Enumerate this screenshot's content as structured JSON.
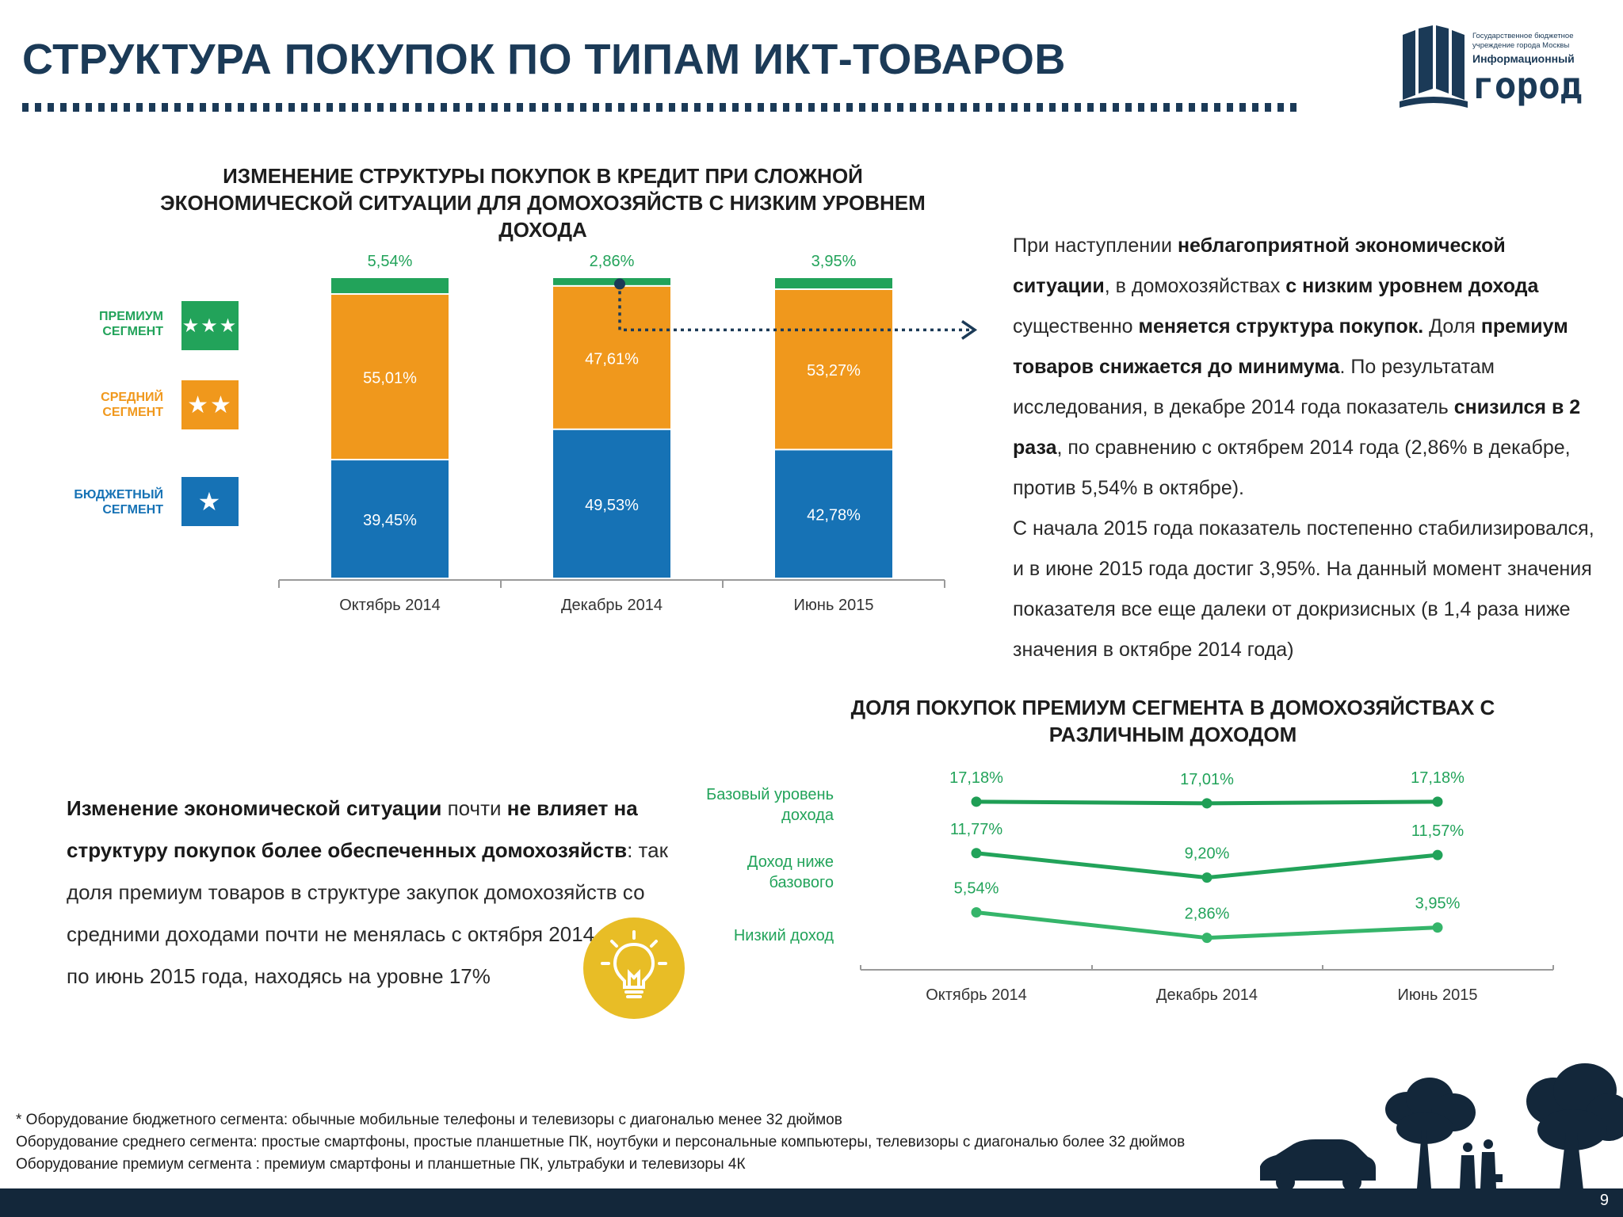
{
  "header": {
    "title": "СТРУКТУРА ПОКУПОК ПО ТИПАМ ИКТ-ТОВАРОВ",
    "logo_subtitle_1": "Государственное бюджетное",
    "logo_subtitle_2": "учреждение города Москвы",
    "logo_line1": "Информационный",
    "logo_line2": "город"
  },
  "legend": [
    {
      "label_1": "ПРЕМИУМ",
      "label_2": "СЕГМЕНТ",
      "stars": "★★★",
      "color": "#22a35a"
    },
    {
      "label_1": "СРЕДНИЙ",
      "label_2": "СЕГМЕНТ",
      "stars": "★★",
      "color": "#f0981c"
    },
    {
      "label_1": "БЮДЖЕТНЫЙ",
      "label_2": "СЕГМЕНТ",
      "stars": "★",
      "color": "#1672b5"
    }
  ],
  "chart_data": [
    {
      "type": "bar",
      "title_line1": "ИЗМЕНЕНИЕ СТРУКТУРЫ ПОКУПОК В КРЕДИТ ПРИ СЛОЖНОЙ",
      "title_line2": "ЭКОНОМИЧЕСКОЙ СИТУАЦИИ ДЛЯ ДОМОХОЗЯЙСТВ С НИЗКИМ УРОВНЕМ ДОХОДА",
      "stacked": true,
      "categories": [
        "Октябрь 2014",
        "Декабрь 2014",
        "Июнь 2015"
      ],
      "series": [
        {
          "name": "БЮДЖЕТНЫЙ СЕГМЕНТ",
          "values": [
            39.45,
            49.53,
            42.78
          ],
          "labels": [
            "39,45%",
            "49,53%",
            "42,78%"
          ],
          "color": "#1672b5"
        },
        {
          "name": "СРЕДНИЙ СЕГМЕНТ",
          "values": [
            55.01,
            47.61,
            53.27
          ],
          "labels": [
            "55,01%",
            "47,61%",
            "53,27%"
          ],
          "color": "#f0981c"
        },
        {
          "name": "ПРЕМИУМ СЕГМЕНТ",
          "values": [
            5.54,
            2.86,
            3.95
          ],
          "labels": [
            "5,54%",
            "2,86%",
            "3,95%"
          ],
          "color": "#22a35a"
        }
      ],
      "ylim": [
        0,
        100
      ],
      "grid": false
    },
    {
      "type": "line",
      "title_line1": "ДОЛЯ ПОКУПОК ПРЕМИУМ СЕГМЕНТА В ДОМОХОЗЯЙСТВАХ С",
      "title_line2": "РАЗЛИЧНЫМ ДОХОДОМ",
      "categories": [
        "Октябрь 2014",
        "Декабрь 2014",
        "Июнь 2015"
      ],
      "series": [
        {
          "name_1": "Базовый уровень",
          "name_2": "дохода",
          "values": [
            17.18,
            17.01,
            17.18
          ],
          "labels": [
            "17,18%",
            "17,01%",
            "17,18%"
          ],
          "color": "#1f9e55"
        },
        {
          "name_1": "Доход ниже",
          "name_2": "базового",
          "values": [
            11.77,
            9.2,
            11.57
          ],
          "labels": [
            "11,77%",
            "9,20%",
            "11,57%"
          ],
          "color": "#22a35a"
        },
        {
          "name_1": "Низкий доход",
          "name_2": "",
          "values": [
            5.54,
            2.86,
            3.95
          ],
          "labels": [
            "5,54%",
            "2,86%",
            "3,95%"
          ],
          "color": "#35b56a"
        }
      ],
      "grid": false
    }
  ],
  "right_text": {
    "p1": "При наступлении ",
    "p1b": "неблагоприятной экономической ситуации",
    "p2": ", в домохозяйствах ",
    "p2b": "с низким уровнем дохода",
    "p3": " существенно ",
    "p3b": "меняется структура покупок.",
    "p4": " Доля ",
    "p4b": "премиум товаров снижается до минимума",
    "p5": ". По результатам исследования,  в декабре 2014 года показатель ",
    "p5b": "снизился в 2 раза",
    "p6": ", по сравнению с октябрем 2014 года (2,86% в декабре, против 5,54% в октябре).",
    "p7": "С начала 2015 года показатель постепенно стабилизировался, и в июне 2015 года достиг 3,95%. На данный момент значения показателя все еще далеки от докризисных (в 1,4 раза ниже значения в октябре 2014 года)"
  },
  "left_text": {
    "b1": "Изменение экономической ситуации",
    "t1": " почти ",
    "b2": "не влияет на структуру покупок более обеспеченных домохозяйств",
    "t2": ":  так доля премиум товаров в структуре закупок домохозяйств со средними доходами почти не менялась  с октября 2014 года по июнь 2015 года, находясь на уровне 17%"
  },
  "footnotes": [
    "*  Оборудование бюджетного сегмента: обычные мобильные телефоны и телевизоры с диагональю менее 32 дюймов",
    "Оборудование среднего сегмента: простые смартфоны, простые планшетные ПК, ноутбуки и персональные компьютеры, телевизоры с диагональю более 32 дюймов",
    "Оборудование премиум сегмента : премиум смартфоны и планшетные ПК, ультрабуки и телевизоры 4К"
  ],
  "page_number": "9"
}
